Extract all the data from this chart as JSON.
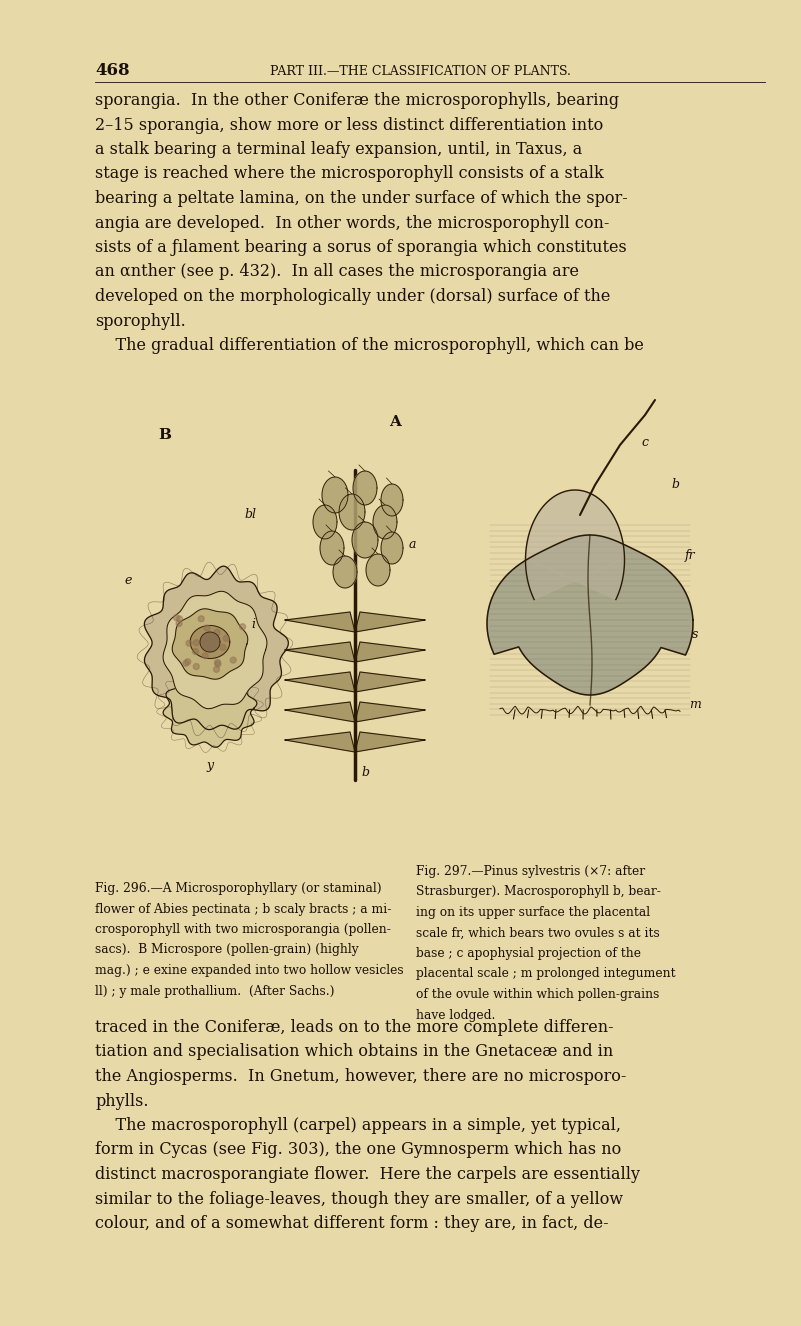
{
  "bg_color": "#E8D9A8",
  "text_color": "#1a1008",
  "page_number": "468",
  "header": "PART III.—THE CLASSIFICATION OF PLANTS.",
  "fig_width": 8.01,
  "fig_height": 13.26,
  "dpi": 100,
  "body_fontsize": 11.5,
  "header_fontsize": 9.0,
  "caption_fontsize": 8.8,
  "page_num_fontsize": 12.0,
  "body_lines_top": [
    "sporangia.  In the other Coniferæ the microsporophylls, bearing",
    "2–15 sporangia, show more or less distinct differentiation into",
    "a stalk bearing a terminal leafy expansion, until, in Taxus, a",
    "stage is reached where the microsporophyll consists of a stalk",
    "bearing a peltate lamina, on the under surface of which the spor-",
    "angia are developed.  In other words, the microsporophyll con-",
    "sists of a ƒılament bearing a sorus of sporangia which constitutes",
    "an αnther (see p. 432).  In all cases the microsporangia are",
    "developed on the morphologically under (dorsal) surface of the",
    "sporophyll.",
    "    The gradual differentiation of the microsporophyll, which can be"
  ],
  "caption_left_lines": [
    "Fig. 296.—A Microsporophyllary (or staminal)",
    "flower of Abies pectinata ; b scaly bracts ; a mi-",
    "crosporophyll with two microsporangia (pollen-",
    "sacs).  B Microspore (pollen-grain) (highly",
    "mag.) ; e exine expanded into two hollow vesicles",
    "ll) ; y male prothallium.  (After Sachs.)"
  ],
  "caption_right_lines": [
    "Fig. 297.—Pinus sylvestris (×7: after",
    "Strasburger). Macrosporophyll b, bear-",
    "ing on its upper surface the placental",
    "scale fr, which bears two ovules s at its",
    "base ; c apophysial projection of the",
    "placental scale ; m prolonged integument",
    "of the ovule within which pollen-grains",
    "have lodged."
  ],
  "body_lines_bottom": [
    "traced in the Coniferæ, leads on to the more complete differen-",
    "tiation and specialisation which obtains in the Gnetaceæ and in",
    "the Angiosperms.  In Gnetum, however, there are no microsporo-",
    "phylls.",
    "    The macrosporophyll (carpel) appears in a simple, yet typical,",
    "form in Cycas (see Fig. 303), the one Gymnosperm which has no",
    "distinct macrosporangiate flower.  Here the carpels are essentially",
    "similar to the foliage-leaves, though they are smaller, of a yellow",
    "colour, and of a somewhat different form : they are, in fact, de-"
  ]
}
